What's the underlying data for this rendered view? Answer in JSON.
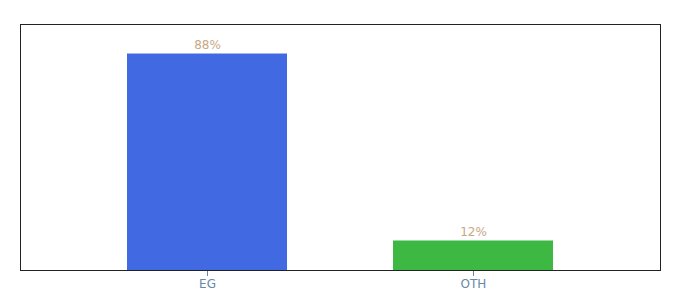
{
  "chart_data": {
    "type": "bar",
    "categories": [
      "EG",
      "OTH"
    ],
    "values": [
      88,
      12
    ],
    "value_labels": [
      "88%",
      "12%"
    ],
    "colors": [
      "#4169e1",
      "#3cb843"
    ],
    "ylim": [
      0,
      100
    ],
    "yticks": [],
    "grid": false,
    "data_labels": true,
    "tick_labels": "x"
  }
}
